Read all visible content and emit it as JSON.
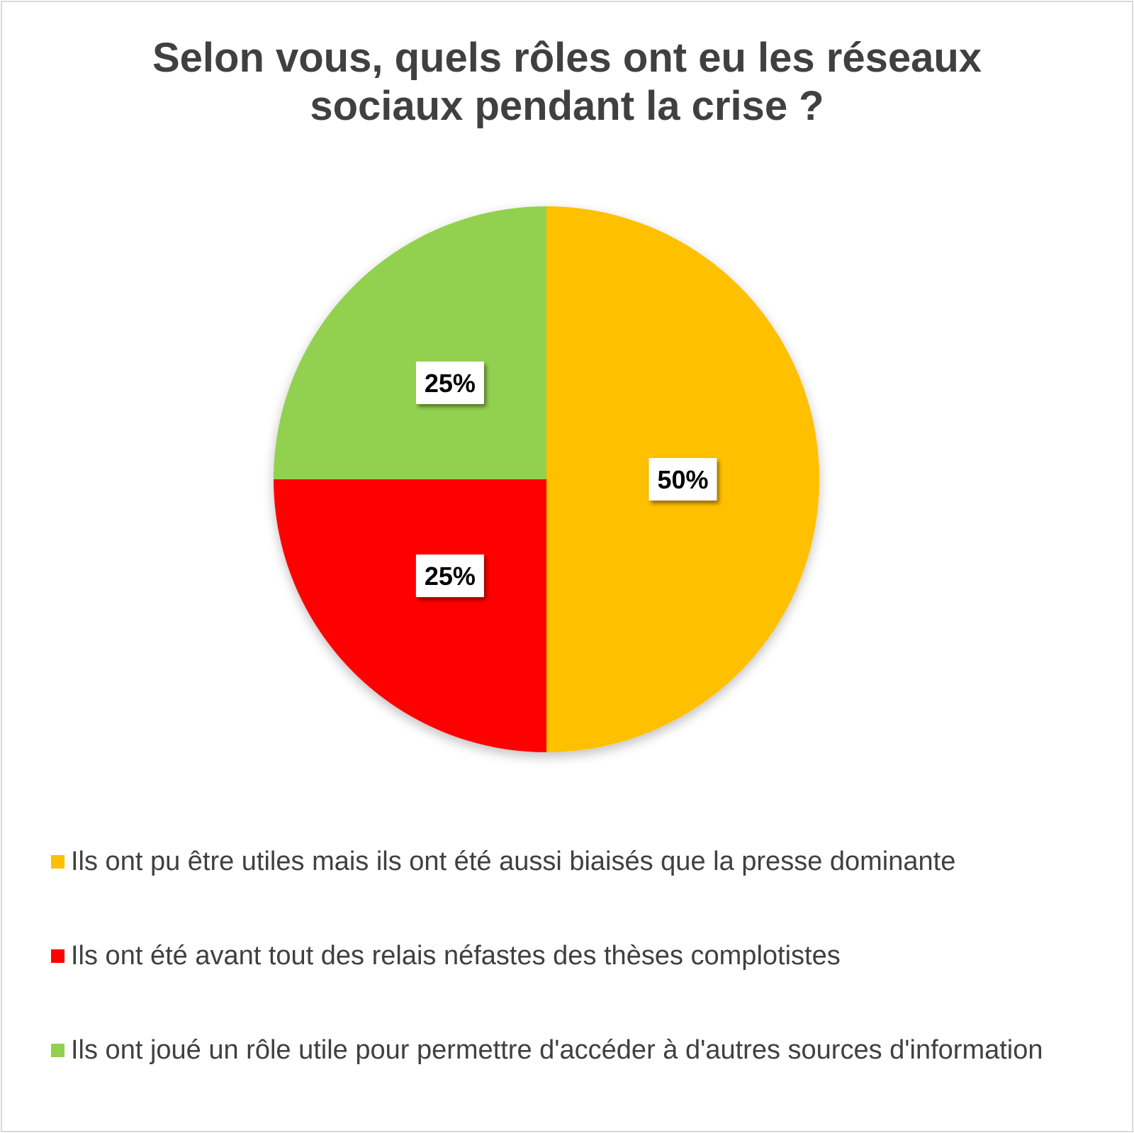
{
  "chart_data": {
    "type": "pie",
    "title": "Selon vous, quels rôles ont eu les réseaux sociaux pendant la crise ?",
    "categories": [
      "Ils ont pu être utiles mais ils ont été aussi biaisés que la presse dominante",
      "Ils ont été avant tout des relais néfastes des thèses complotistes",
      "Ils ont joué un rôle utile pour permettre d'accéder à d'autres sources d'information"
    ],
    "values": [
      50,
      25,
      25
    ],
    "data_labels": [
      "50%",
      "25%",
      "25%"
    ],
    "colors": [
      "#FFC000",
      "#FF0000",
      "#92D050"
    ],
    "legend_position": "bottom",
    "start_angle": "12 o'clock, clockwise"
  }
}
